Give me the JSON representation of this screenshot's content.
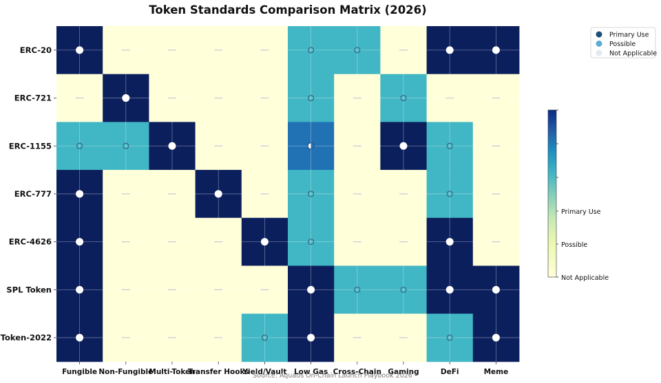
{
  "chart_data": {
    "type": "heatmap",
    "title": "Token Standards Comparison Matrix (2026)",
    "source": "Source: Aquads On-Chain Launch Playbook 2026",
    "rows": [
      "ERC-20",
      "ERC-721",
      "ERC-1155",
      "ERC-777",
      "ERC-4626",
      "SPL Token",
      "Token-2022"
    ],
    "columns": [
      "Fungible",
      "Non-Fungible",
      "Multi-Token",
      "Transfer Hooks",
      "Yield/Vault",
      "Low Gas",
      "Cross-Chain",
      "Gaming",
      "DeFi",
      "Meme"
    ],
    "values": [
      [
        2,
        0,
        0,
        0,
        0,
        1,
        1,
        0,
        2,
        2
      ],
      [
        0,
        2,
        0,
        0,
        0,
        1,
        0,
        1,
        0,
        0
      ],
      [
        1,
        1,
        2,
        0,
        0,
        1.5,
        0,
        2,
        1,
        0
      ],
      [
        2,
        0,
        0,
        2,
        0,
        1,
        0,
        0,
        1,
        0
      ],
      [
        2,
        0,
        0,
        0,
        2,
        1,
        0,
        0,
        2,
        0
      ],
      [
        2,
        0,
        0,
        0,
        0,
        2,
        1,
        1,
        2,
        2
      ],
      [
        2,
        0,
        0,
        0,
        1,
        2,
        0,
        0,
        1,
        2
      ]
    ],
    "value_meaning": {
      "0": "Not Applicable",
      "1": "Possible",
      "2": "Primary Use"
    },
    "colorbar_labels": [
      "Not Applicable",
      "Possible",
      "Primary Use"
    ],
    "legend": {
      "placement": "top-right",
      "entries": [
        {
          "label": "Primary Use",
          "color": "#1f4e79"
        },
        {
          "label": "Possible",
          "color": "#5aaed6"
        },
        {
          "label": "Not Applicable",
          "color": "#e4e8f2"
        }
      ]
    },
    "colors": {
      "level0": "#ffffd9",
      "level1": "#41b6c4",
      "level1_5": "#2171b5",
      "level2": "#0c1f5d"
    },
    "grid": true
  }
}
